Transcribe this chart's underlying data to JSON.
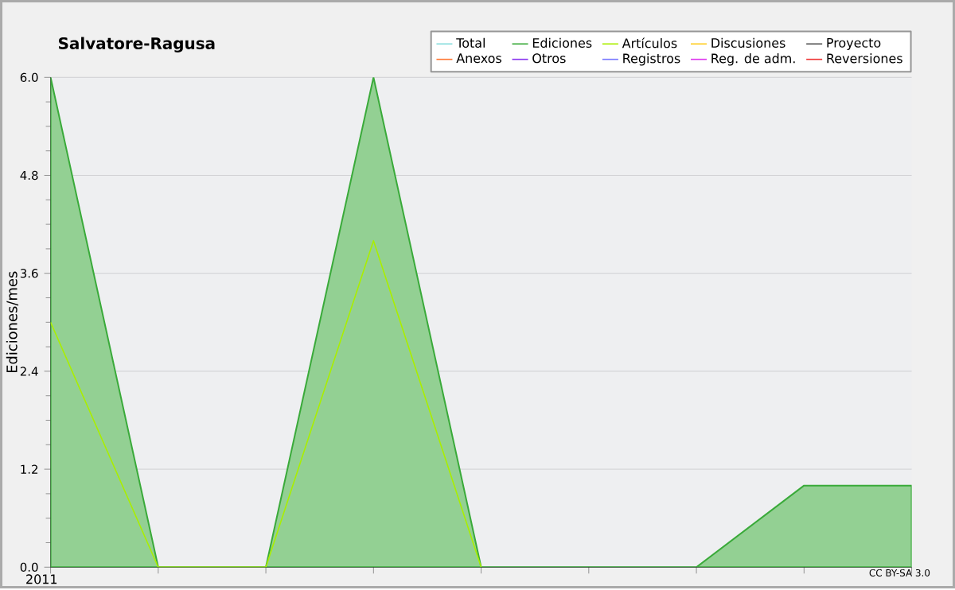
{
  "chart_data": {
    "type": "area",
    "title": "Salvatore-Ragusa",
    "ylabel": "Ediciones/mes",
    "categories": [
      "2011",
      null,
      null,
      null,
      null,
      null,
      null,
      null,
      null
    ],
    "series": [
      {
        "name": "Total",
        "color": "#88dddd",
        "values": [
          null,
          null,
          null,
          null,
          null,
          null,
          null,
          null,
          null
        ]
      },
      {
        "name": "Ediciones",
        "color": "#3aaa3a",
        "values": [
          6,
          0,
          0,
          6,
          0,
          0,
          0,
          1,
          1
        ]
      },
      {
        "name": "Artículos",
        "color": "#aaee00",
        "type": "line",
        "values": [
          3,
          0,
          0,
          4,
          0,
          null,
          null,
          null,
          null
        ]
      },
      {
        "name": "Discusiones",
        "color": "#ffcc22",
        "values": [
          null,
          null,
          null,
          null,
          null,
          null,
          null,
          null,
          null
        ]
      },
      {
        "name": "Proyecto",
        "color": "#555555",
        "values": [
          null,
          null,
          null,
          null,
          null,
          null,
          null,
          null,
          null
        ]
      },
      {
        "name": "Anexos",
        "color": "#ff7733",
        "values": [
          null,
          null,
          null,
          null,
          null,
          null,
          null,
          null,
          null
        ]
      },
      {
        "name": "Otros",
        "color": "#8833ee",
        "values": [
          null,
          null,
          null,
          null,
          null,
          null,
          null,
          null,
          null
        ]
      },
      {
        "name": "Registros",
        "color": "#7777ff",
        "values": [
          null,
          null,
          null,
          null,
          null,
          null,
          null,
          null,
          null
        ]
      },
      {
        "name": "Reg. de adm.",
        "color": "#dd33ee",
        "values": [
          null,
          null,
          null,
          null,
          null,
          null,
          null,
          null,
          null
        ]
      },
      {
        "name": "Reversiones",
        "color": "#ee3333",
        "values": [
          null,
          null,
          null,
          null,
          null,
          null,
          null,
          null,
          null
        ]
      }
    ],
    "ylim": [
      0,
      6
    ],
    "yticks": [
      {
        "value": 0,
        "label": "0.0"
      },
      {
        "value": 1.2,
        "label": "1.2"
      },
      {
        "value": 2.4,
        "label": "2.4"
      },
      {
        "value": 3.6,
        "label": "3.6"
      },
      {
        "value": 4.8,
        "label": "4.8"
      },
      {
        "value": 6,
        "label": "6.0"
      }
    ],
    "grid": "y",
    "legend": "top right",
    "annotations": [
      "CC BY-SA 3.0"
    ]
  }
}
